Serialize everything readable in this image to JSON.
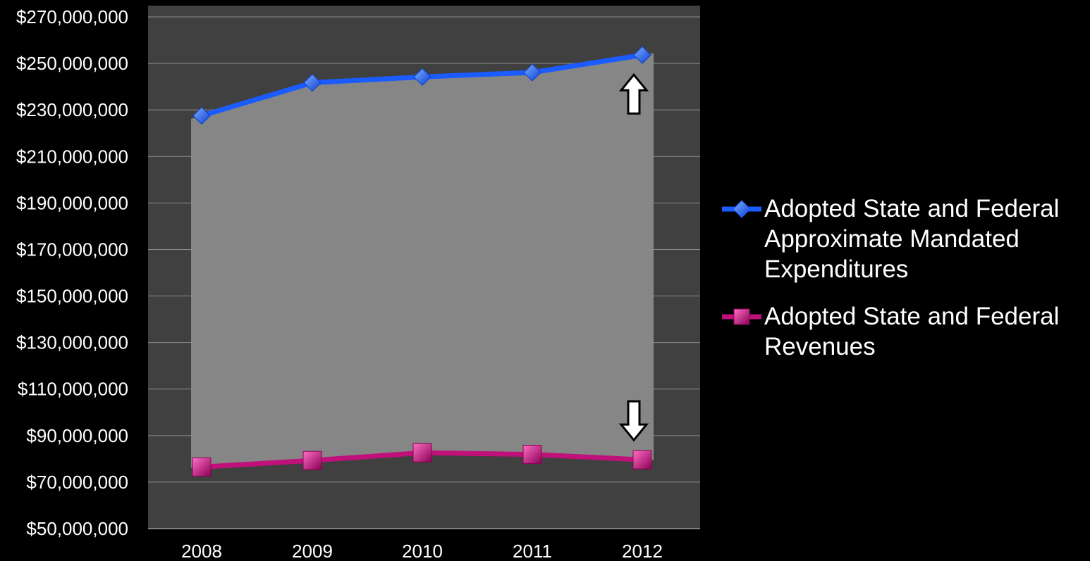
{
  "colors": {
    "background": "#000000",
    "plot_area": "#404040",
    "shaded_band": "#8a8a8a",
    "expenditures": "#1a5cff",
    "revenues": "#c0107a",
    "gridline": "#8c8c8c"
  },
  "chart_data": {
    "type": "line",
    "title": "",
    "xlabel": "",
    "ylabel": "",
    "categories": [
      "2008",
      "2009",
      "2010",
      "2011",
      "2012"
    ],
    "ylim": [
      50000000,
      270000000
    ],
    "yticks": [
      50000000,
      70000000,
      90000000,
      110000000,
      130000000,
      150000000,
      170000000,
      190000000,
      210000000,
      230000000,
      250000000,
      270000000
    ],
    "ytick_labels": [
      "$50,000,000",
      "$70,000,000",
      "$90,000,000",
      "$110,000,000",
      "$130,000,000",
      "$150,000,000",
      "$170,000,000",
      "$190,000,000",
      "$210,000,000",
      "$230,000,000",
      "$250,000,000",
      "$270,000,000"
    ],
    "grid": true,
    "legend_position": "right",
    "series": [
      {
        "name": "Adopted State and Federal Approximate Mandated Expenditures",
        "legend_lines": [
          "Adopted State and Federal",
          "Approximate Mandated",
          "Expenditures"
        ],
        "marker": "diamond",
        "color": "#1a5cff",
        "values": [
          227500000,
          241700000,
          244200000,
          246100000,
          253600000
        ]
      },
      {
        "name": "Adopted State and Federal Revenues",
        "legend_lines": [
          "Adopted State and Federal",
          "Revenues"
        ],
        "marker": "square",
        "color": "#c0107a",
        "values": [
          76500000,
          79300000,
          82600000,
          81900000,
          79600000
        ]
      }
    ],
    "annotations": [
      {
        "type": "arrow-up",
        "category": "2012",
        "series": 0
      },
      {
        "type": "arrow-down",
        "category": "2012",
        "series": 1
      }
    ]
  }
}
